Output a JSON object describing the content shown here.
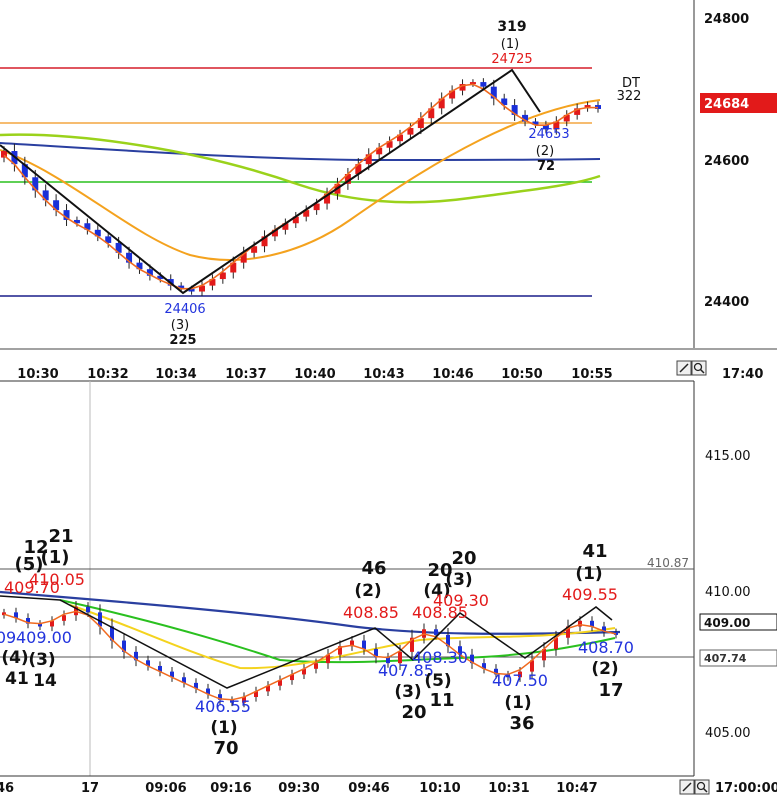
{
  "colors": {
    "bull": "#e21a1a",
    "bear": "#1a2fd8",
    "ma_fast": "#f06a1f",
    "ma_mid": "#f4a21e",
    "ma_slow_green": "#9ad21b",
    "ma_blue": "#2a3fa0",
    "level_red": "#d61f2a",
    "level_green": "#2ac01f",
    "level_navy": "#1a1f8a",
    "level_orange": "#f3a640",
    "price_tag_bg": "#e21a1a"
  },
  "top_chart": {
    "y_ticks": [
      "24800",
      "24600",
      "24400"
    ],
    "x_ticks": [
      "10:30",
      "10:32",
      "10:34",
      "10:37",
      "10:40",
      "10:43",
      "10:46",
      "10:50",
      "10:55"
    ],
    "last_time": "17:40",
    "price_tag": "24684",
    "dt_label": "DT",
    "dt_value": "322",
    "annotations": {
      "low_price": "24406",
      "low_wave": "(3)",
      "low_count": "225",
      "high_top": "319",
      "high_wave": "(1)",
      "high_price": "24725",
      "mid_price": "24653",
      "mid_wave": "(2)",
      "mid_count": "72"
    }
  },
  "bottom_chart": {
    "y_ticks": [
      "415.00",
      "410.00",
      "405.00"
    ],
    "x_ticks": [
      "46",
      "17",
      "09:06",
      "09:16",
      "09:30",
      "09:46",
      "10:10",
      "10:31",
      "10:47"
    ],
    "last_time": "17:00:00",
    "ref_price": "410.87",
    "price_tag": "409.00",
    "level_tag": "407.74",
    "annotations": {
      "a_top1": "12",
      "a_top2": "21",
      "a_top3": "(5)",
      "a_top4": "(1)",
      "a_red1": "409.70",
      "a_red2": "410.05",
      "a_blue1": "09",
      "a_blue2": "409.00",
      "a_bot1": "(4)",
      "a_bot2": "(3)",
      "a_bot3": "41",
      "a_bot4": "14",
      "low_price": "406.55",
      "low_wave": "(1)",
      "low_count": "70",
      "b_count": "46",
      "b_wave": "(2)",
      "b_red": "408.85",
      "b_blue": "407.85",
      "b_bwave": "(3)",
      "b_bcount": "20",
      "c_red1": "408.85",
      "c_red2": "409.30",
      "c_top1": "20",
      "c_top2": "20",
      "c_wave1": "(4)",
      "c_wave2": "(3)",
      "c_blue": "408.30",
      "c_bwave": "(5)",
      "c_bcount": "11",
      "d_blue": "407.50",
      "d_wave": "(1)",
      "d_count": "36",
      "e_count": "41",
      "e_wave": "(1)",
      "e_red": "409.55",
      "e_blue": "408.70",
      "e_bwave": "(2)",
      "e_bcount": "17"
    }
  },
  "chart_data": [
    {
      "type": "candlestick",
      "title": "",
      "y_range": [
        24320,
        24850
      ],
      "y_ticks": [
        24400,
        24600,
        24800
      ],
      "x_tick_labels": [
        "10:30",
        "10:32",
        "10:34",
        "10:37",
        "10:40",
        "10:43",
        "10:46",
        "10:50",
        "10:55"
      ],
      "horizontal_levels": [
        {
          "value": 24725,
          "color": "red"
        },
        {
          "value": 24650,
          "color": "orange"
        },
        {
          "value": 24570,
          "color": "green"
        },
        {
          "value": 24406,
          "color": "navy"
        }
      ],
      "wave_points": [
        {
          "label": "24406",
          "wave": "(3)",
          "count": 225
        },
        {
          "label": "24725",
          "wave": "(1)",
          "count": 319
        },
        {
          "label": "24653",
          "wave": "(2)",
          "count": 72
        }
      ],
      "closes": [
        24620,
        24600,
        24580,
        24560,
        24545,
        24530,
        24515,
        24510,
        24500,
        24490,
        24480,
        24465,
        24450,
        24440,
        24430,
        24425,
        24415,
        24410,
        24406,
        24415,
        24425,
        24435,
        24450,
        24465,
        24475,
        24490,
        24500,
        24510,
        24520,
        24530,
        24540,
        24555,
        24570,
        24585,
        24600,
        24615,
        24625,
        24635,
        24645,
        24655,
        24670,
        24685,
        24700,
        24712,
        24722,
        24725,
        24718,
        24700,
        24690,
        24675,
        24665,
        24660,
        24653,
        24665,
        24675,
        24685,
        24690,
        24684
      ],
      "last_price": 24684
    },
    {
      "type": "candlestick",
      "title": "",
      "y_range": [
        404.0,
        418.0
      ],
      "y_ticks": [
        405.0,
        410.0,
        415.0
      ],
      "x_tick_labels": [
        "46",
        "17",
        "09:06",
        "09:16",
        "09:30",
        "09:46",
        "10:10",
        "10:31",
        "10:47"
      ],
      "horizontal_levels": [
        {
          "value": 410.87,
          "color": "gray"
        },
        {
          "value": 407.74,
          "color": "gray"
        }
      ],
      "wave_points": [
        {
          "label": "410.05",
          "wave": "(1)",
          "count": 21
        },
        {
          "label": "406.55",
          "wave": "(1)",
          "count": 70
        },
        {
          "label": "408.85",
          "wave": "(2)",
          "count": 46
        },
        {
          "label": "407.85",
          "wave": "(3)",
          "count": 20
        },
        {
          "label": "409.30",
          "wave": "(3)",
          "count": 20
        },
        {
          "label": "408.30",
          "wave": "(5)",
          "count": 11
        },
        {
          "label": "407.50",
          "wave": "(1)",
          "count": 36
        },
        {
          "label": "409.55",
          "wave": "(1)",
          "count": 41
        },
        {
          "label": "408.70",
          "wave": "(2)",
          "count": 17
        }
      ],
      "closes": [
        409.8,
        409.6,
        409.4,
        409.3,
        409.5,
        409.7,
        410.0,
        409.8,
        409.3,
        408.8,
        408.4,
        408.1,
        407.9,
        407.7,
        407.5,
        407.3,
        407.1,
        406.9,
        406.7,
        406.6,
        406.8,
        407.0,
        407.2,
        407.4,
        407.6,
        407.8,
        408.0,
        408.3,
        408.6,
        408.8,
        408.5,
        408.2,
        408.0,
        408.4,
        408.9,
        409.2,
        409.0,
        408.6,
        408.3,
        408.0,
        407.8,
        407.6,
        407.5,
        407.7,
        408.1,
        408.5,
        408.9,
        409.3,
        409.5,
        409.3,
        409.1,
        409.0
      ],
      "last_price": 409.0
    }
  ]
}
